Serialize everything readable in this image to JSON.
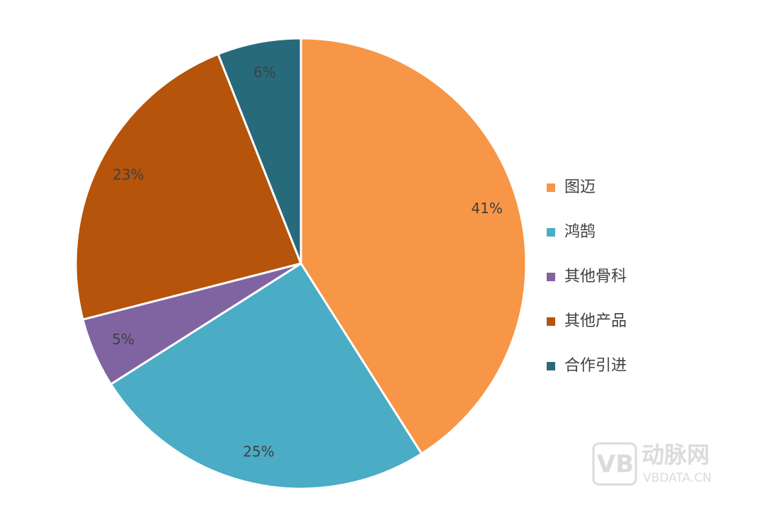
{
  "chart_data": {
    "type": "pie",
    "categories": [
      "图迈",
      "鸿鹄",
      "其他骨科",
      "其他产品",
      "合作引进"
    ],
    "values": [
      41,
      25,
      5,
      23,
      6
    ],
    "value_labels": [
      "41%",
      "25%",
      "5%",
      "23%",
      "6%"
    ],
    "colors": [
      "#F79646",
      "#4BACC6",
      "#8064A2",
      "#B5540A",
      "#276A7C"
    ],
    "legend": "right"
  },
  "watermark": {
    "brand": "动脉网",
    "site": "VBDATA.CN"
  }
}
